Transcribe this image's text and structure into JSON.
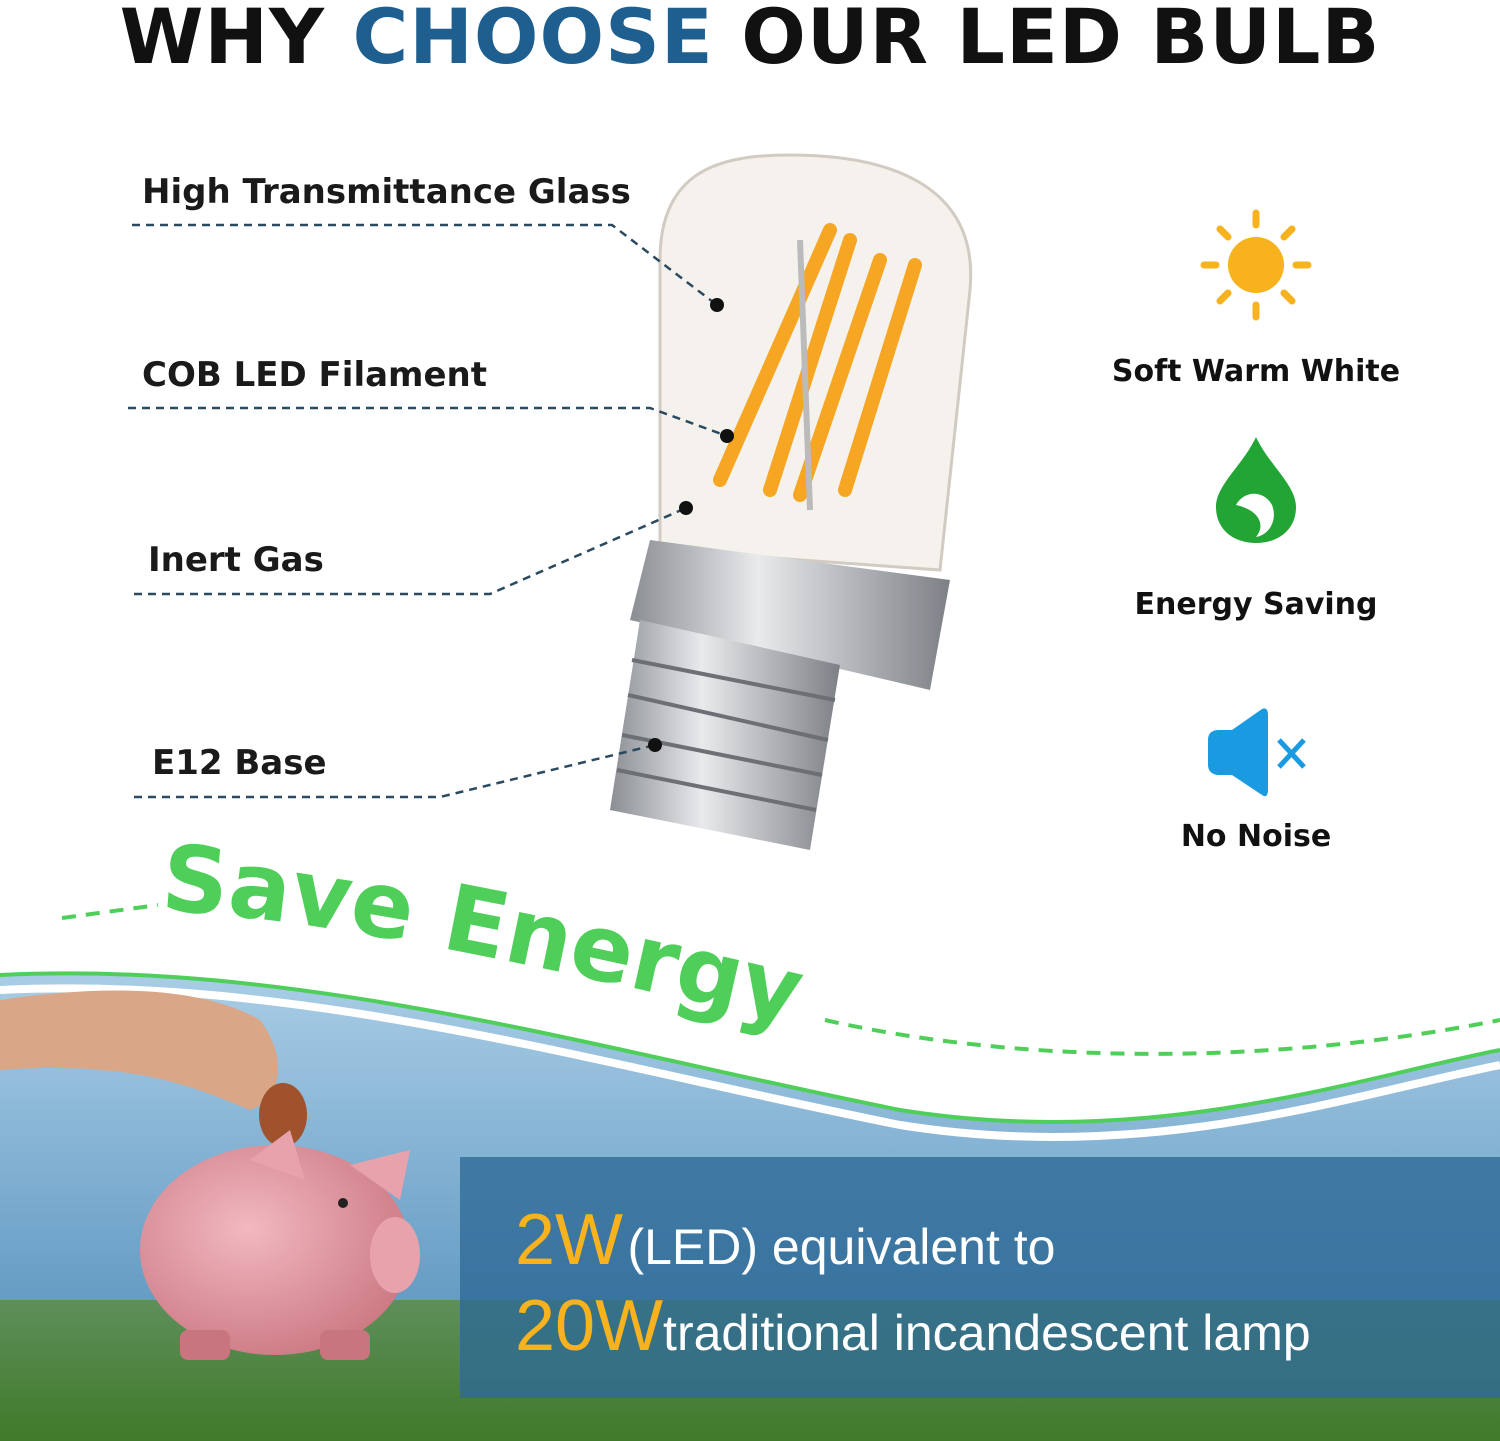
{
  "title": {
    "part1": "WHY ",
    "accent": "CHOOSE",
    "part2": " OUR LED BULB"
  },
  "callouts": [
    {
      "label": "High Transmittance Glass"
    },
    {
      "label": "COB LED Filament"
    },
    {
      "label": "Inert Gas"
    },
    {
      "label": "E12 Base"
    }
  ],
  "features": [
    {
      "icon": "sun-icon",
      "label": "Soft Warm White",
      "color": "#f7b21d"
    },
    {
      "icon": "leaf-drop-icon",
      "label": "Energy Saving",
      "color": "#22a535"
    },
    {
      "icon": "speaker-mute-icon",
      "label": "No Noise",
      "color": "#1a9ae0"
    }
  ],
  "banner": {
    "headline": "Save Energy",
    "color": "#4fcf5a"
  },
  "comparison": {
    "led_watt": "2W",
    "line1": "(LED) equivalent to",
    "traditional_watt": "20W",
    "line2": "traditional incandescent lamp",
    "highlight_color": "#f7b21d"
  },
  "colors": {
    "title_accent": "#1f5f8f",
    "panel": "#2d6996"
  }
}
